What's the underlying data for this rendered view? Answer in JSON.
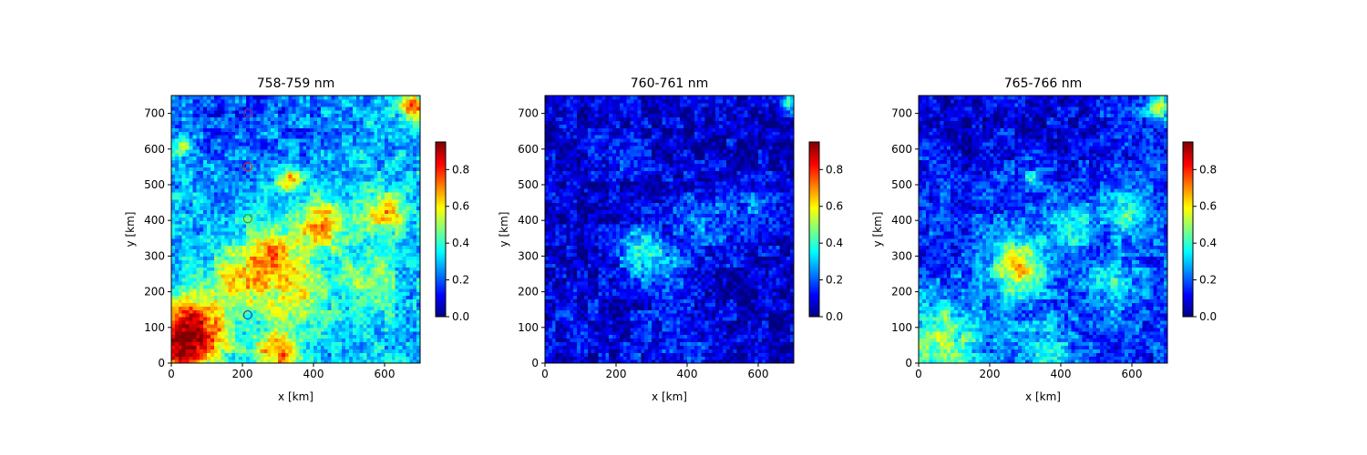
{
  "colormap": "jet",
  "chart_data": [
    {
      "type": "heatmap",
      "title": "758-759 nm",
      "xlabel": "x [km]",
      "ylabel": "y [km]",
      "xlim": [
        0,
        700
      ],
      "ylim": [
        0,
        750
      ],
      "xticks": [
        0,
        200,
        400,
        600
      ],
      "yticks": [
        0,
        100,
        200,
        300,
        400,
        500,
        600,
        700
      ],
      "colorbar": {
        "range": [
          0,
          0.95
        ],
        "ticks": [
          "0.0",
          "0.2",
          "0.4",
          "0.6",
          "0.8"
        ]
      },
      "base_level": 0.3,
      "markers": [
        {
          "x": 215,
          "y": 700,
          "color": "#8e1a8e"
        },
        {
          "x": 215,
          "y": 550,
          "color": "#d62728"
        },
        {
          "x": 215,
          "y": 405,
          "color": "#2ca02c"
        },
        {
          "x": 215,
          "y": 135,
          "color": "#1f3fbf"
        }
      ],
      "approx_field": [
        {
          "x": 60,
          "y": 90,
          "value": 0.9,
          "spread": 70
        },
        {
          "x": 25,
          "y": 50,
          "value": 0.95,
          "spread": 40
        },
        {
          "x": 280,
          "y": 280,
          "value": 0.75,
          "spread": 70
        },
        {
          "x": 330,
          "y": 520,
          "value": 0.85,
          "spread": 25
        },
        {
          "x": 420,
          "y": 390,
          "value": 0.7,
          "spread": 50
        },
        {
          "x": 600,
          "y": 420,
          "value": 0.65,
          "spread": 45
        },
        {
          "x": 180,
          "y": 230,
          "value": 0.7,
          "spread": 40
        },
        {
          "x": 350,
          "y": 200,
          "value": 0.6,
          "spread": 60
        },
        {
          "x": 150,
          "y": 700,
          "value": 0.18,
          "spread": 120
        },
        {
          "x": 350,
          "y": 680,
          "value": 0.2,
          "spread": 90
        },
        {
          "x": 680,
          "y": 720,
          "value": 0.8,
          "spread": 25
        },
        {
          "x": 300,
          "y": 30,
          "value": 0.7,
          "spread": 50
        },
        {
          "x": 30,
          "y": 610,
          "value": 0.55,
          "spread": 20
        },
        {
          "x": 550,
          "y": 230,
          "value": 0.5,
          "spread": 60
        }
      ]
    },
    {
      "type": "heatmap",
      "title": "760-761 nm",
      "xlabel": "x [km]",
      "ylabel": "y [km]",
      "xlim": [
        0,
        700
      ],
      "ylim": [
        0,
        750
      ],
      "xticks": [
        0,
        200,
        400,
        600
      ],
      "yticks": [
        0,
        100,
        200,
        300,
        400,
        500,
        600,
        700
      ],
      "colorbar": {
        "range": [
          0,
          0.95
        ],
        "ticks": [
          "0.0",
          "0.2",
          "0.4",
          "0.6",
          "0.8"
        ]
      },
      "base_level": 0.07,
      "markers": [],
      "approx_field": [
        {
          "x": 300,
          "y": 290,
          "value": 0.4,
          "spread": 55
        },
        {
          "x": 250,
          "y": 330,
          "value": 0.35,
          "spread": 30
        },
        {
          "x": 450,
          "y": 400,
          "value": 0.25,
          "spread": 60
        },
        {
          "x": 600,
          "y": 430,
          "value": 0.22,
          "spread": 50
        },
        {
          "x": 690,
          "y": 730,
          "value": 0.35,
          "spread": 20
        },
        {
          "x": 200,
          "y": 600,
          "value": 0.15,
          "spread": 60
        },
        {
          "x": 350,
          "y": 50,
          "value": 0.15,
          "spread": 90
        },
        {
          "x": 100,
          "y": 120,
          "value": 0.12,
          "spread": 70
        }
      ]
    },
    {
      "type": "heatmap",
      "title": "765-766 nm",
      "xlabel": "x [km]",
      "ylabel": "y [km]",
      "xlim": [
        0,
        700
      ],
      "ylim": [
        0,
        750
      ],
      "xticks": [
        0,
        200,
        400,
        600
      ],
      "yticks": [
        0,
        100,
        200,
        300,
        400,
        500,
        600,
        700
      ],
      "colorbar": {
        "range": [
          0,
          0.95
        ],
        "ticks": [
          "0.0",
          "0.2",
          "0.4",
          "0.6",
          "0.8"
        ]
      },
      "base_level": 0.16,
      "markers": [],
      "approx_field": [
        {
          "x": 280,
          "y": 270,
          "value": 0.6,
          "spread": 60
        },
        {
          "x": 60,
          "y": 70,
          "value": 0.5,
          "spread": 80
        },
        {
          "x": 420,
          "y": 390,
          "value": 0.4,
          "spread": 50
        },
        {
          "x": 600,
          "y": 420,
          "value": 0.4,
          "spread": 45
        },
        {
          "x": 320,
          "y": 520,
          "value": 0.45,
          "spread": 25
        },
        {
          "x": 680,
          "y": 720,
          "value": 0.55,
          "spread": 25
        },
        {
          "x": 150,
          "y": 690,
          "value": 0.06,
          "spread": 110
        },
        {
          "x": 380,
          "y": 680,
          "value": 0.08,
          "spread": 90
        },
        {
          "x": 350,
          "y": 40,
          "value": 0.35,
          "spread": 70
        },
        {
          "x": 550,
          "y": 230,
          "value": 0.35,
          "spread": 60
        }
      ]
    }
  ]
}
